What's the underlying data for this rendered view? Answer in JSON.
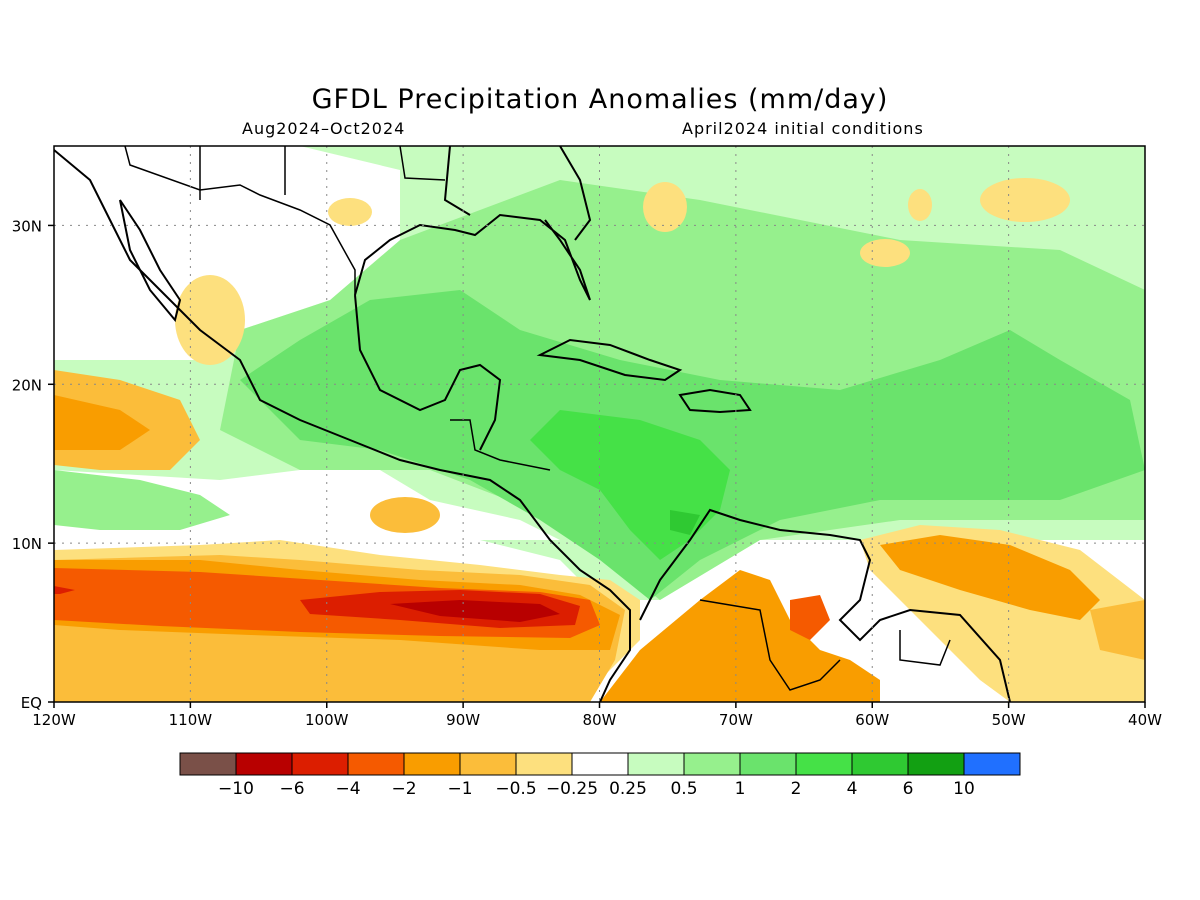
{
  "title": "GFDL Precipitation Anomalies (mm/day)",
  "subtitle_left": "Aug2024–Oct2024",
  "subtitle_right": "April2024 initial conditions",
  "map": {
    "lon_range": [
      -120,
      -40
    ],
    "lat_range": [
      0,
      35
    ],
    "x_ticks": [
      {
        "value": -120,
        "label": "120W"
      },
      {
        "value": -110,
        "label": "110W"
      },
      {
        "value": -100,
        "label": "100W"
      },
      {
        "value": -90,
        "label": "90W"
      },
      {
        "value": -80,
        "label": "80W"
      },
      {
        "value": -70,
        "label": "70W"
      },
      {
        "value": -60,
        "label": "60W"
      },
      {
        "value": -50,
        "label": "50W"
      },
      {
        "value": -40,
        "label": "40W"
      }
    ],
    "y_ticks": [
      {
        "value": 0,
        "label": "EQ"
      },
      {
        "value": 10,
        "label": "10N"
      },
      {
        "value": 20,
        "label": "20N"
      },
      {
        "value": 30,
        "label": "30N"
      }
    ],
    "grid": "dotted"
  },
  "colorbar": {
    "colors": [
      "#7a5048",
      "#b80000",
      "#dc1e00",
      "#f55a00",
      "#f99d00",
      "#fbbd3a",
      "#fde07e",
      "#ffffff",
      "#c7fcbf",
      "#96f08d",
      "#6ae36c",
      "#45e147",
      "#2fc932",
      "#12a012",
      "#2070ff"
    ],
    "labels": [
      "−10",
      "−6",
      "−4",
      "−2",
      "−1",
      "−0.5",
      "−0.25",
      "0.25",
      "0.5",
      "1",
      "2",
      "4",
      "6",
      "10"
    ]
  }
}
